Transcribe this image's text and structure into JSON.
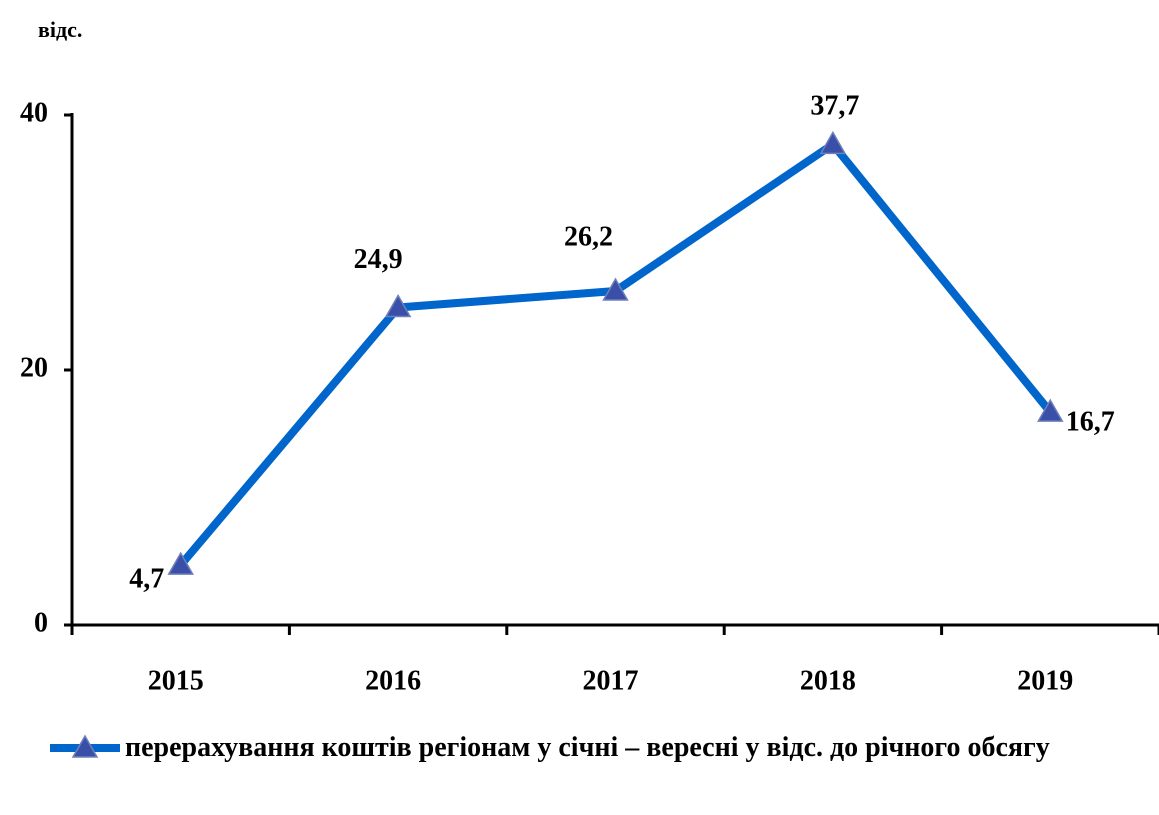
{
  "chart_data": {
    "type": "line",
    "y_label": "відс.",
    "categories": [
      "2015",
      "2016",
      "2017",
      "2018",
      "2019"
    ],
    "series": [
      {
        "name": "перерахування коштів регіонам у січні – вересні у відс. до річного обсягу",
        "color": "#0066cc",
        "marker_color": "#3a4fa8",
        "values": [
          4.7,
          24.9,
          26.2,
          37.7,
          16.7
        ],
        "value_labels": [
          "4,7",
          "24,9",
          "26,2",
          "37,7",
          "16,7"
        ]
      }
    ],
    "ylim": [
      0,
      40
    ],
    "yticks": [
      0,
      20,
      40
    ],
    "grid": false,
    "legend": "bottom"
  }
}
